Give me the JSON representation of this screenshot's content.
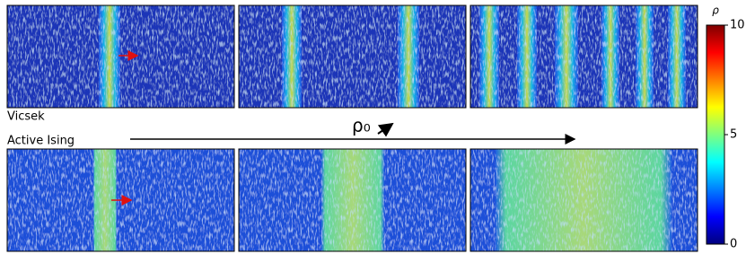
{
  "figure": {
    "row_labels": [
      "Vicsek",
      "Active Ising"
    ],
    "annotation": "ρ₀",
    "colorbar": {
      "label": "ρ",
      "lim": [
        0,
        10
      ],
      "ticks": [
        0,
        5,
        10
      ]
    }
  }
}
